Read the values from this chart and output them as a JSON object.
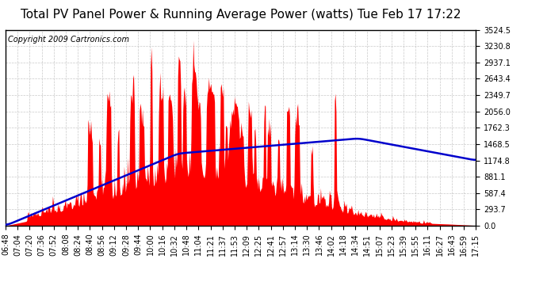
{
  "title": "Total PV Panel Power & Running Average Power (watts) Tue Feb 17 17:22",
  "copyright_text": "Copyright 2009 Cartronics.com",
  "background_color": "#ffffff",
  "plot_bg_color": "#ffffff",
  "grid_color": "#bbbbbb",
  "fill_color": "#ff0000",
  "line_color": "#0000cc",
  "y_ticks": [
    0.0,
    293.7,
    587.4,
    881.1,
    1174.8,
    1468.5,
    1762.3,
    2056.0,
    2349.7,
    2643.4,
    2937.1,
    3230.8,
    3524.5
  ],
  "x_tick_labels": [
    "06:48",
    "07:04",
    "07:20",
    "07:36",
    "07:52",
    "08:08",
    "08:24",
    "08:40",
    "08:56",
    "09:12",
    "09:28",
    "09:44",
    "10:00",
    "10:16",
    "10:32",
    "10:48",
    "11:04",
    "11:21",
    "11:37",
    "11:53",
    "12:09",
    "12:25",
    "12:41",
    "12:57",
    "13:14",
    "13:30",
    "13:46",
    "14:02",
    "14:18",
    "14:34",
    "14:51",
    "15:07",
    "15:23",
    "15:39",
    "15:55",
    "16:11",
    "16:27",
    "16:43",
    "16:59",
    "17:15"
  ],
  "ylim": [
    0,
    3524.5
  ],
  "title_fontsize": 11,
  "copyright_fontsize": 7,
  "tick_fontsize": 7,
  "line_width": 1.8,
  "figsize": [
    6.9,
    3.75
  ],
  "dpi": 100
}
